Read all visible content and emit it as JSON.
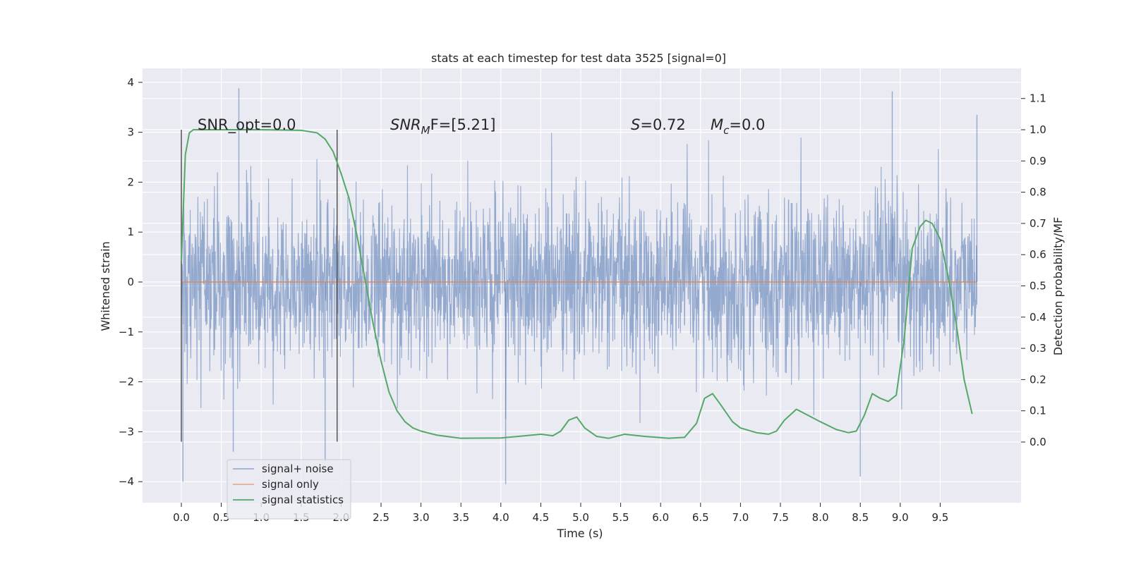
{
  "chart_data": {
    "type": "line",
    "title": "stats at each timestep for test data 3525 [signal=0]",
    "xlabel": "Time (s)",
    "ylabel": "Whitened strain",
    "y2label": "Detection probability/MF",
    "xlim": [
      -0.48,
      10.52
    ],
    "ylim": [
      -4.4,
      4.3
    ],
    "y2lim": [
      -0.19,
      1.2
    ],
    "xticks": [
      "0.0",
      "0.5",
      "1.0",
      "1.5",
      "2.0",
      "2.5",
      "3.0",
      "3.5",
      "4.0",
      "4.5",
      "5.0",
      "5.5",
      "6.0",
      "6.5",
      "7.0",
      "7.5",
      "8.0",
      "8.5",
      "9.0",
      "9.5"
    ],
    "yticks": [
      "4",
      "3",
      "2",
      "1",
      "0",
      "−1",
      "−2",
      "−3",
      "−4"
    ],
    "y2ticks": [
      "1.1",
      "1.0",
      "0.9",
      "0.8",
      "0.7",
      "0.6",
      "0.5",
      "0.4",
      "0.3",
      "0.2",
      "0.1",
      "0.0"
    ],
    "grid": true,
    "legend_position": "lower-left",
    "annotations": {
      "snr_opt": "SNR_opt=0.0",
      "snr_mf_base": "SNR",
      "snr_mf_sub": "M",
      "snr_mf_rest": "F=[5.21]",
      "s_var": "S",
      "s_rest": "=0.72",
      "mc_var": "M",
      "mc_sub": "c",
      "mc_rest": "=0.0"
    },
    "markers": {
      "x": [
        0.0,
        1.95
      ],
      "y_range": [
        -3.2,
        3.05
      ]
    },
    "series": [
      {
        "name": "signal+ noise",
        "color": "#4c72b0",
        "description_values": "noise, roughly ±1.2 core band with spikes up to ±3.9, t from 0 to 10 s",
        "envelope": {
          "core": 1.2,
          "max_positive": 3.88,
          "max_negative": -4.05,
          "t_range": [
            0.0,
            9.96
          ]
        }
      },
      {
        "name": "signal only",
        "color": "#dd8452",
        "x": [
          0.0,
          9.96
        ],
        "values": [
          0.0,
          0.0
        ]
      },
      {
        "name": "signal statistics",
        "color": "#55a868",
        "axis": "right",
        "x": [
          0.0,
          0.05,
          0.1,
          0.15,
          0.2,
          0.3,
          0.5,
          1.0,
          1.5,
          1.7,
          1.8,
          1.9,
          2.0,
          2.1,
          2.2,
          2.3,
          2.4,
          2.5,
          2.6,
          2.7,
          2.8,
          2.9,
          3.0,
          3.2,
          3.5,
          4.0,
          4.3,
          4.5,
          4.65,
          4.75,
          4.85,
          4.95,
          5.05,
          5.2,
          5.35,
          5.55,
          5.8,
          6.1,
          6.3,
          6.45,
          6.55,
          6.65,
          6.75,
          6.9,
          7.0,
          7.2,
          7.35,
          7.45,
          7.55,
          7.7,
          7.85,
          8.0,
          8.2,
          8.35,
          8.45,
          8.55,
          8.65,
          8.75,
          8.85,
          8.95,
          9.05,
          9.15,
          9.25,
          9.32,
          9.4,
          9.5,
          9.6,
          9.7,
          9.8,
          9.9
        ],
        "values": [
          0.58,
          0.92,
          0.99,
          1.0,
          1.0,
          1.0,
          1.0,
          1.0,
          0.998,
          0.99,
          0.97,
          0.93,
          0.86,
          0.78,
          0.66,
          0.52,
          0.38,
          0.26,
          0.16,
          0.1,
          0.065,
          0.045,
          0.035,
          0.022,
          0.012,
          0.013,
          0.02,
          0.025,
          0.02,
          0.035,
          0.07,
          0.08,
          0.045,
          0.018,
          0.012,
          0.025,
          0.018,
          0.012,
          0.015,
          0.06,
          0.14,
          0.155,
          0.12,
          0.065,
          0.045,
          0.03,
          0.025,
          0.035,
          0.07,
          0.105,
          0.085,
          0.065,
          0.04,
          0.03,
          0.035,
          0.085,
          0.155,
          0.14,
          0.13,
          0.15,
          0.33,
          0.62,
          0.69,
          0.71,
          0.7,
          0.65,
          0.53,
          0.38,
          0.2,
          0.09
        ]
      }
    ]
  }
}
